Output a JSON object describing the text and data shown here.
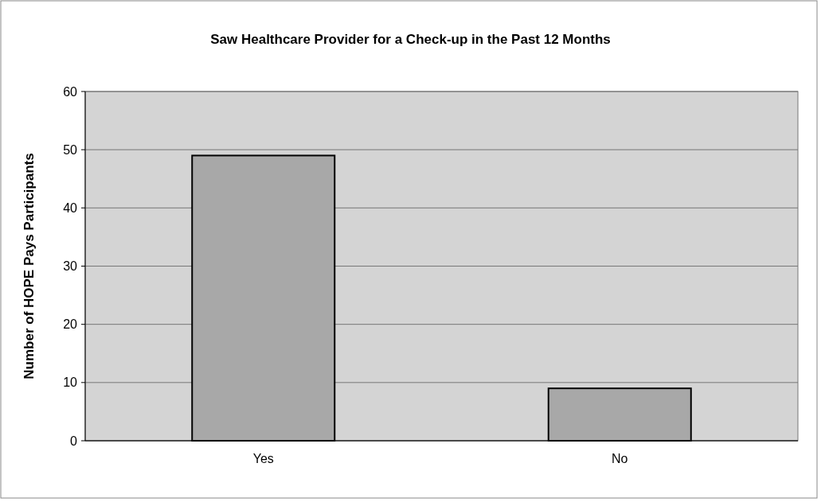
{
  "chart_data": {
    "type": "bar",
    "title": "Saw Healthcare Provider for a Check-up in the Past 12 Months",
    "ylabel": "Number of HOPE Pays Participants",
    "categories": [
      "Yes",
      "No"
    ],
    "values": [
      49,
      9
    ],
    "color": "#a8a8a8",
    "ylim": [
      0,
      60
    ],
    "yticks": [
      0,
      10,
      20,
      30,
      40,
      50,
      60
    ],
    "grid": "y"
  }
}
